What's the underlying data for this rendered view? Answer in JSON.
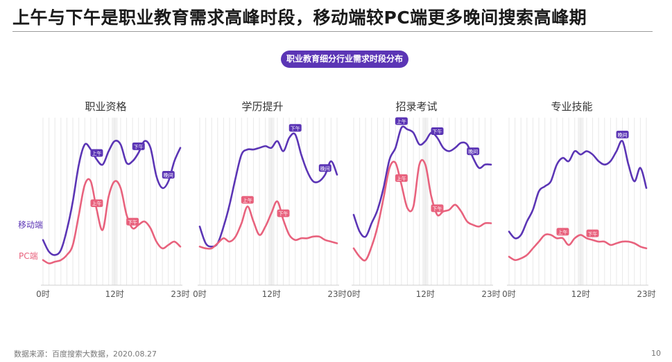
{
  "header": {
    "title": "上午与下午是职业教育需求高峰时段，移动端较PC端更多晚间搜索高峰期",
    "subtitle_pill": "职业教育细分行业需求时段分布"
  },
  "legend": {
    "mobile": "移动端",
    "pc": "PC端"
  },
  "colors": {
    "mobile": "#5b35b5",
    "pc": "#e8627d",
    "grid": "#e9e9e9",
    "axis": "#cfcfcf"
  },
  "footer": {
    "source": "数据来源：百度搜索大数据，2020.08.27",
    "page": "10"
  },
  "chart_data": [
    {
      "type": "line",
      "title": "职业资格",
      "x": [
        0,
        1,
        2,
        3,
        4,
        5,
        6,
        7,
        8,
        9,
        10,
        11,
        12,
        13,
        14,
        15,
        16,
        17,
        18,
        19,
        20,
        21,
        22,
        23
      ],
      "x_tick_labels": [
        "0时",
        "12时",
        "23时"
      ],
      "ylim": [
        0,
        100
      ],
      "series": [
        {
          "name": "移动端",
          "values": [
            27,
            20,
            18,
            21,
            33,
            50,
            72,
            84,
            81,
            75,
            72,
            80,
            86,
            84,
            73,
            74,
            79,
            86,
            82,
            65,
            58,
            62,
            74,
            82
          ]
        },
        {
          "name": "PC端",
          "values": [
            15,
            13,
            14,
            15,
            18,
            24,
            42,
            60,
            62,
            45,
            33,
            53,
            62,
            58,
            42,
            34,
            36,
            38,
            34,
            26,
            22,
            24,
            26,
            23
          ]
        }
      ],
      "annotations": [
        {
          "series": "移动端",
          "x": 9,
          "label": "上午"
        },
        {
          "series": "移动端",
          "x": 16,
          "label": "下午"
        },
        {
          "series": "移动端",
          "x": 21,
          "label": "晚间"
        },
        {
          "series": "PC端",
          "x": 9,
          "label": "上午"
        },
        {
          "series": "PC端",
          "x": 15,
          "label": "下午"
        }
      ]
    },
    {
      "type": "line",
      "title": "学历提升",
      "x": [
        0,
        1,
        2,
        3,
        4,
        5,
        6,
        7,
        8,
        9,
        10,
        11,
        12,
        13,
        14,
        15,
        16,
        17,
        18,
        19,
        20,
        21,
        22,
        23
      ],
      "x_tick_labels": [
        "0时",
        "12时",
        "23时"
      ],
      "ylim": [
        0,
        100
      ],
      "series": [
        {
          "name": "移动端",
          "values": [
            35,
            25,
            23,
            25,
            35,
            48,
            64,
            78,
            81,
            81,
            82,
            83,
            82,
            86,
            80,
            88,
            90,
            78,
            68,
            62,
            62,
            66,
            74,
            66
          ]
        },
        {
          "name": "PC端",
          "values": [
            23,
            22,
            22,
            25,
            28,
            26,
            29,
            37,
            47,
            38,
            30,
            35,
            43,
            50,
            39,
            30,
            27,
            28,
            28,
            29,
            29,
            27,
            26,
            25
          ]
        }
      ],
      "annotations": [
        {
          "series": "移动端",
          "x": 16,
          "label": "下午"
        },
        {
          "series": "移动端",
          "x": 21,
          "label": "晚间"
        },
        {
          "series": "PC端",
          "x": 8,
          "label": "上午"
        },
        {
          "series": "PC端",
          "x": 14,
          "label": "下午"
        }
      ]
    },
    {
      "type": "line",
      "title": "招录考试",
      "x": [
        0,
        1,
        2,
        3,
        4,
        5,
        6,
        7,
        8,
        9,
        10,
        11,
        12,
        13,
        14,
        15,
        16,
        17,
        18,
        19,
        20,
        21,
        22,
        23
      ],
      "x_tick_labels": [
        "0时",
        "12时",
        "23时"
      ],
      "ylim": [
        0,
        100
      ],
      "series": [
        {
          "name": "移动端",
          "values": [
            42,
            32,
            29,
            37,
            45,
            58,
            75,
            82,
            94,
            93,
            91,
            84,
            86,
            91,
            88,
            82,
            80,
            82,
            85,
            84,
            76,
            70,
            72,
            72
          ]
        },
        {
          "name": "PC端",
          "values": [
            22,
            17,
            15,
            23,
            35,
            52,
            70,
            73,
            60,
            46,
            47,
            72,
            72,
            53,
            42,
            44,
            45,
            48,
            44,
            38,
            36,
            35,
            37,
            37
          ]
        }
      ],
      "annotations": [
        {
          "series": "移动端",
          "x": 8,
          "label": "上午"
        },
        {
          "series": "移动端",
          "x": 14,
          "label": "下午"
        },
        {
          "series": "移动端",
          "x": 20,
          "label": "晚间"
        },
        {
          "series": "PC端",
          "x": 8,
          "label": "上午"
        },
        {
          "series": "PC端",
          "x": 14,
          "label": "下午"
        }
      ]
    },
    {
      "type": "line",
      "title": "专业技能",
      "x": [
        0,
        1,
        2,
        3,
        4,
        5,
        6,
        7,
        8,
        9,
        10,
        11,
        12,
        13,
        14,
        15,
        16,
        17,
        18,
        19,
        20,
        21,
        22,
        23
      ],
      "x_tick_labels": [
        "0时",
        "12时",
        "23时"
      ],
      "ylim": [
        0,
        100
      ],
      "series": [
        {
          "name": "移动端",
          "values": [
            32,
            28,
            30,
            38,
            45,
            56,
            59,
            62,
            72,
            76,
            74,
            80,
            78,
            80,
            78,
            74,
            72,
            74,
            80,
            86,
            72,
            62,
            70,
            58
          ]
        },
        {
          "name": "PC端",
          "values": [
            17,
            15,
            16,
            18,
            22,
            26,
            30,
            30,
            28,
            28,
            24,
            28,
            30,
            28,
            27,
            26,
            26,
            24,
            25,
            26,
            26,
            25,
            23,
            22
          ]
        }
      ],
      "annotations": [
        {
          "series": "移动端",
          "x": 19,
          "label": "晚间"
        },
        {
          "series": "PC端",
          "x": 9,
          "label": "上午"
        },
        {
          "series": "PC端",
          "x": 14,
          "label": "下午"
        }
      ]
    }
  ]
}
